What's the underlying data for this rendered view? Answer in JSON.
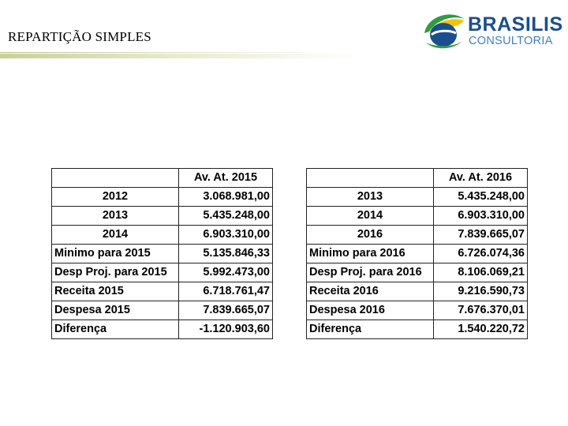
{
  "slide": {
    "title": "REPARTIÇÃO SIMPLES"
  },
  "logo": {
    "line1": "BRASILIS",
    "line2": "CONSULTORIA",
    "icon": "brazil-globe-icon",
    "colors": {
      "navy": "#1a4f8f",
      "blue": "#3f7fc1",
      "green": "#2e9e3e",
      "yellow": "#f5c400"
    }
  },
  "tables": [
    {
      "header": "Av. At. 2015",
      "rows": [
        {
          "label": "2012",
          "value": "3.068.981,00"
        },
        {
          "label": "2013",
          "value": "5.435.248,00"
        },
        {
          "label": "2014",
          "value": "6.903.310,00"
        },
        {
          "label": "Minimo para 2015",
          "value": "5.135.846,33"
        },
        {
          "label": "Desp Proj. para 2015",
          "value": "5.992.473,00"
        },
        {
          "label": "Receita 2015",
          "value": "6.718.761,47"
        },
        {
          "label": "Despesa 2015",
          "value": "7.839.665,07"
        },
        {
          "label": "Diferença",
          "value": "-1.120.903,60"
        }
      ]
    },
    {
      "header": "Av. At. 2016",
      "rows": [
        {
          "label": "2013",
          "value": "5.435.248,00"
        },
        {
          "label": "2014",
          "value": "6.903.310,00"
        },
        {
          "label": "2016",
          "value": "7.839.665,07"
        },
        {
          "label": "Minimo para 2016",
          "value": "6.726.074,36"
        },
        {
          "label": "Desp Proj. para 2016",
          "value": "8.106.069,21"
        },
        {
          "label": "Receita 2016",
          "value": "9.216.590,73"
        },
        {
          "label": "Despesa 2016",
          "value": "7.676.370,01"
        },
        {
          "label": "Diferença",
          "value": "1.540.220,72"
        }
      ]
    }
  ]
}
